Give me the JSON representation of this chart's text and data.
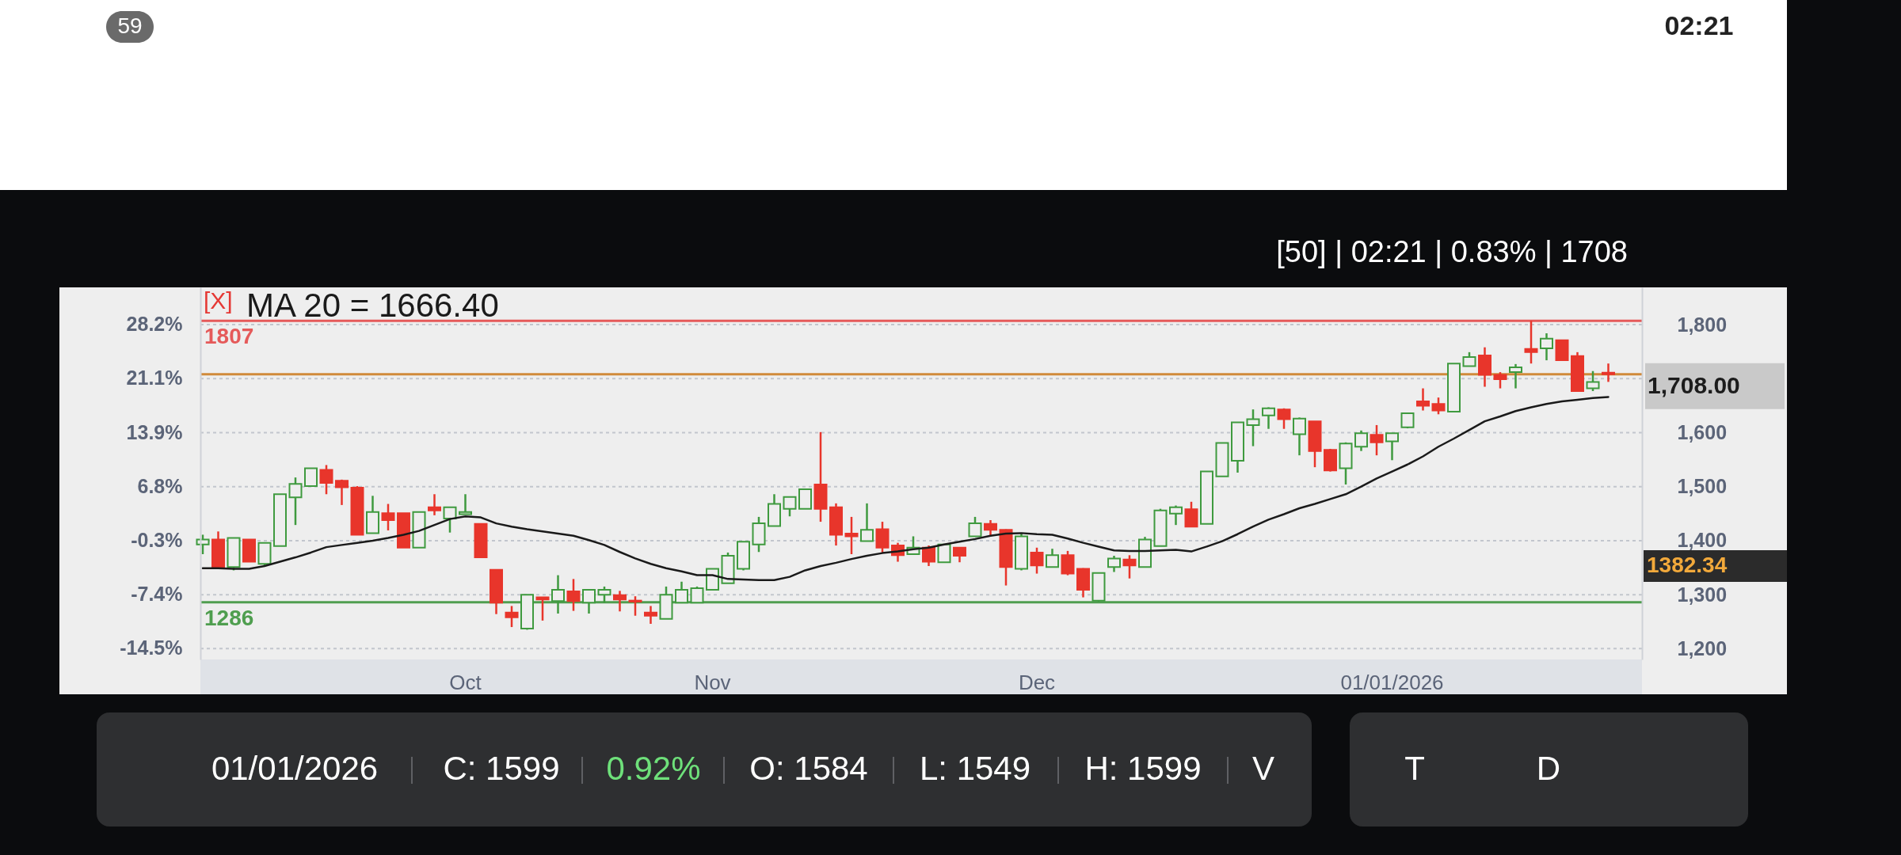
{
  "chart_data": {
    "type": "candlestick",
    "title": "[50] | 02:21 | 0.83% | 1708",
    "categories": [
      null,
      null,
      null,
      null,
      null,
      null,
      null,
      null,
      null,
      null,
      null,
      null,
      null,
      null,
      null,
      null,
      null,
      "Oct",
      null,
      null,
      null,
      null,
      null,
      null,
      null,
      null,
      null,
      null,
      null,
      null,
      null,
      null,
      null,
      "Nov",
      null,
      null,
      null,
      null,
      null,
      null,
      null,
      null,
      null,
      null,
      null,
      null,
      null,
      null,
      null,
      null,
      null,
      null,
      null,
      null,
      "Dec",
      null,
      null,
      null,
      null,
      null,
      null,
      null,
      null,
      null,
      null,
      null,
      null,
      null,
      null,
      null,
      null,
      null,
      null,
      null,
      null,
      null,
      null,
      "01/01/2026",
      null,
      null,
      null,
      null,
      null,
      null,
      null,
      null,
      null,
      null,
      null,
      null,
      null,
      null
    ],
    "ohlc": [
      [
        1393,
        1411,
        1375,
        1402
      ],
      [
        1402,
        1417,
        1351,
        1351
      ],
      [
        1351,
        1405,
        1345,
        1405
      ],
      [
        1402,
        1402,
        1361,
        1361
      ],
      [
        1357,
        1396,
        1354,
        1396
      ],
      [
        1390,
        1486,
        1390,
        1486
      ],
      [
        1480,
        1517,
        1429,
        1505
      ],
      [
        1501,
        1534,
        1501,
        1534
      ],
      [
        1531,
        1540,
        1486,
        1507
      ],
      [
        1511,
        1513,
        1466,
        1499
      ],
      [
        1498,
        1501,
        1411,
        1411
      ],
      [
        1414,
        1483,
        1414,
        1453
      ],
      [
        1451,
        1468,
        1419,
        1438
      ],
      [
        1451,
        1451,
        1387,
        1387
      ],
      [
        1387,
        1453,
        1387,
        1453
      ],
      [
        1462,
        1486,
        1447,
        1456
      ],
      [
        1441,
        1462,
        1415,
        1462
      ],
      [
        1449,
        1486,
        1449,
        1453
      ],
      [
        1431,
        1431,
        1369,
        1369
      ],
      [
        1346,
        1346,
        1264,
        1285
      ],
      [
        1267,
        1279,
        1240,
        1258
      ],
      [
        1237,
        1300,
        1235,
        1300
      ],
      [
        1295,
        1295,
        1252,
        1291
      ],
      [
        1288,
        1336,
        1265,
        1309
      ],
      [
        1306,
        1329,
        1270,
        1288
      ],
      [
        1285,
        1309,
        1265,
        1309
      ],
      [
        1300,
        1315,
        1285,
        1309
      ],
      [
        1299,
        1307,
        1269,
        1291
      ],
      [
        1289,
        1297,
        1261,
        1287
      ],
      [
        1267,
        1279,
        1246,
        1261
      ],
      [
        1255,
        1315,
        1255,
        1300
      ],
      [
        1285,
        1324,
        1285,
        1309
      ],
      [
        1285,
        1315,
        1285,
        1312
      ],
      [
        1309,
        1348,
        1309,
        1348
      ],
      [
        1321,
        1378,
        1321,
        1372
      ],
      [
        1348,
        1398,
        1345,
        1398
      ],
      [
        1393,
        1444,
        1379,
        1432
      ],
      [
        1427,
        1486,
        1427,
        1468
      ],
      [
        1459,
        1481,
        1445,
        1481
      ],
      [
        1459,
        1496,
        1459,
        1495
      ],
      [
        1504,
        1601,
        1435,
        1459
      ],
      [
        1462,
        1469,
        1391,
        1411
      ],
      [
        1413,
        1444,
        1375,
        1408
      ],
      [
        1399,
        1469,
        1399,
        1420
      ],
      [
        1421,
        1435,
        1378,
        1387
      ],
      [
        1391,
        1396,
        1361,
        1373
      ],
      [
        1375,
        1408,
        1375,
        1387
      ],
      [
        1387,
        1391,
        1353,
        1361
      ],
      [
        1360,
        1393,
        1360,
        1393
      ],
      [
        1387,
        1387,
        1360,
        1372
      ],
      [
        1408,
        1444,
        1408,
        1432
      ],
      [
        1431,
        1438,
        1408,
        1420
      ],
      [
        1420,
        1421,
        1317,
        1351
      ],
      [
        1348,
        1414,
        1345,
        1408
      ],
      [
        1378,
        1387,
        1339,
        1354
      ],
      [
        1351,
        1385,
        1351,
        1373
      ],
      [
        1373,
        1381,
        1336,
        1339
      ],
      [
        1348,
        1349,
        1295,
        1309
      ],
      [
        1289,
        1340,
        1287,
        1340
      ],
      [
        1351,
        1372,
        1342,
        1367
      ],
      [
        1365,
        1373,
        1330,
        1354
      ],
      [
        1351,
        1407,
        1351,
        1402
      ],
      [
        1390,
        1459,
        1390,
        1456
      ],
      [
        1450,
        1465,
        1429,
        1462
      ],
      [
        1458,
        1472,
        1426,
        1426
      ],
      [
        1431,
        1528,
        1431,
        1528
      ],
      [
        1519,
        1581,
        1519,
        1581
      ],
      [
        1548,
        1619,
        1526,
        1619
      ],
      [
        1614,
        1643,
        1575,
        1625
      ],
      [
        1632,
        1647,
        1607,
        1645
      ],
      [
        1643,
        1645,
        1607,
        1625
      ],
      [
        1597,
        1628,
        1558,
        1626
      ],
      [
        1621,
        1621,
        1536,
        1566
      ],
      [
        1568,
        1570,
        1528,
        1530
      ],
      [
        1534,
        1582,
        1504,
        1580
      ],
      [
        1574,
        1604,
        1566,
        1599
      ],
      [
        1596,
        1614,
        1558,
        1582
      ],
      [
        1584,
        1599,
        1549,
        1599
      ],
      [
        1610,
        1636,
        1608,
        1636
      ],
      [
        1658,
        1682,
        1641,
        1650
      ],
      [
        1653,
        1665,
        1634,
        1641
      ],
      [
        1639,
        1728,
        1639,
        1728
      ],
      [
        1723,
        1749,
        1723,
        1740
      ],
      [
        1743,
        1758,
        1685,
        1707
      ],
      [
        1707,
        1712,
        1682,
        1699
      ],
      [
        1712,
        1727,
        1682,
        1721
      ],
      [
        1755,
        1807,
        1728,
        1749
      ],
      [
        1756,
        1784,
        1734,
        1774
      ],
      [
        1771,
        1771,
        1734,
        1734
      ],
      [
        1742,
        1749,
        1677,
        1677
      ],
      [
        1682,
        1714,
        1677,
        1694
      ],
      [
        1711,
        1728,
        1694,
        1708
      ]
    ],
    "colors": [
      "#3f9a3f",
      "#e8352b",
      "#3f9a3f",
      "#e8352b",
      "#3f9a3f",
      "#3f9a3f",
      "#3f9a3f",
      "#3f9a3f",
      "#e8352b",
      "#e8352b",
      "#e8352b",
      "#3f9a3f",
      "#e8352b",
      "#e8352b",
      "#3f9a3f",
      "#e8352b",
      "#3f9a3f",
      "#3f9a3f",
      "#e8352b",
      "#e8352b",
      "#e8352b",
      "#3f9a3f",
      "#e8352b",
      "#3f9a3f",
      "#e8352b",
      "#3f9a3f",
      "#3f9a3f",
      "#e8352b",
      "#e8352b",
      "#e8352b",
      "#3f9a3f",
      "#3f9a3f",
      "#3f9a3f",
      "#3f9a3f",
      "#3f9a3f",
      "#3f9a3f",
      "#3f9a3f",
      "#3f9a3f",
      "#3f9a3f",
      "#3f9a3f",
      "#e8352b",
      "#e8352b",
      "#e8352b",
      "#3f9a3f",
      "#e8352b",
      "#e8352b",
      "#3f9a3f",
      "#e8352b",
      "#3f9a3f",
      "#e8352b",
      "#3f9a3f",
      "#e8352b",
      "#e8352b",
      "#3f9a3f",
      "#e8352b",
      "#3f9a3f",
      "#e8352b",
      "#e8352b",
      "#3f9a3f",
      "#3f9a3f",
      "#e8352b",
      "#3f9a3f",
      "#3f9a3f",
      "#3f9a3f",
      "#e8352b",
      "#3f9a3f",
      "#3f9a3f",
      "#3f9a3f",
      "#3f9a3f",
      "#3f9a3f",
      "#e8352b",
      "#3f9a3f",
      "#e8352b",
      "#e8352b",
      "#3f9a3f",
      "#3f9a3f",
      "#e8352b",
      "#3f9a3f",
      "#3f9a3f",
      "#e8352b",
      "#e8352b",
      "#3f9a3f",
      "#3f9a3f",
      "#e8352b",
      "#e8352b",
      "#3f9a3f",
      "#e8352b",
      "#3f9a3f",
      "#e8352b",
      "#e8352b",
      "#3f9a3f",
      "#e8352b"
    ],
    "series": [
      {
        "name": "MA 20 = 1666.40",
        "type": "line",
        "color": "#1a1a1a",
        "values": [
          1349,
          1349,
          1348,
          1348,
          1353,
          1361,
          1369,
          1378,
          1388,
          1392,
          1396,
          1400,
          1405,
          1411,
          1418,
          1429,
          1440,
          1445,
          1443,
          1432,
          1426,
          1421,
          1417,
          1413,
          1409,
          1401,
          1392,
          1379,
          1367,
          1357,
          1349,
          1343,
          1336,
          1336,
          1329,
          1328,
          1327,
          1327,
          1333,
          1345,
          1353,
          1359,
          1366,
          1372,
          1377,
          1380,
          1384,
          1387,
          1393,
          1398,
          1403,
          1409,
          1413,
          1414,
          1412,
          1411,
          1404,
          1396,
          1389,
          1382,
          1381,
          1381,
          1382,
          1383,
          1380,
          1389,
          1399,
          1412,
          1426,
          1439,
          1449,
          1460,
          1468,
          1477,
          1486,
          1500,
          1515,
          1528,
          1541,
          1556,
          1574,
          1589,
          1605,
          1621,
          1630,
          1640,
          1647,
          1653,
          1658,
          1661,
          1664,
          1666
        ]
      }
    ],
    "ylim": [
      1180,
      1869
    ],
    "yticks": [
      {
        "value": 1200,
        "label": "1,200"
      },
      {
        "value": 1300,
        "label": "1,300"
      },
      {
        "value": 1400,
        "label": "1,400"
      },
      {
        "value": 1500,
        "label": "1,500"
      },
      {
        "value": 1600,
        "label": "1,600"
      },
      {
        "value": 1700,
        "label": null
      },
      {
        "value": 1800,
        "label": "1,800"
      }
    ],
    "y2lim": [
      -16.0,
      33.1
    ],
    "y2ticks": [
      {
        "value": -14.5,
        "label": "-14.5%"
      },
      {
        "value": -7.4,
        "label": "-7.4%"
      },
      {
        "value": -0.3,
        "label": "-0.3%"
      },
      {
        "value": 6.8,
        "label": "6.8%"
      },
      {
        "value": 13.9,
        "label": "13.9%"
      },
      {
        "value": 21.1,
        "label": "21.1%"
      },
      {
        "value": 28.2,
        "label": "28.2%"
      }
    ],
    "grid": "y",
    "legend": "top left",
    "ref_lines": [
      {
        "axis": "y",
        "value": 1807,
        "label": "1807",
        "color": "#e55a5a"
      },
      {
        "axis": "y",
        "value": 1286,
        "label": "1286",
        "color": "#4f9e4f"
      },
      {
        "axis": "y",
        "value": 1708,
        "label": "1,708.00",
        "color": "#d08a3a"
      }
    ],
    "annotations": [
      "[X]",
      "1382.34",
      "01/01/2026",
      "C: 1599",
      "0.92%",
      "O: 1584",
      "L: 1549",
      "H: 1599",
      "V",
      "T",
      "D",
      "59",
      "02:21"
    ]
  }
}
